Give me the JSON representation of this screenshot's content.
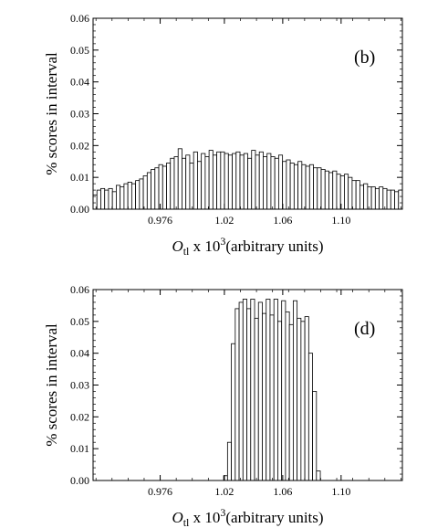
{
  "chart_data": [
    {
      "type": "bar",
      "panel_label": "(b)",
      "ylabel": "% scores in interval",
      "xlabel_prefix": "O",
      "xlabel_sub": "tl",
      "xlabel_mid": " x 10",
      "xlabel_sup": "3",
      "xlabel_suffix": "(arbitrary units)",
      "xlim": [
        0.93,
        1.142
      ],
      "ylim": [
        0,
        0.06
      ],
      "xticks": [
        "0.976",
        "1.02",
        "1.06",
        "1.10"
      ],
      "yticks": [
        "0.00",
        "0.01",
        "0.02",
        "0.03",
        "0.04",
        "0.05",
        "0.06"
      ],
      "bin_start": 0.93,
      "bin_width": 0.00265,
      "values": [
        0.0045,
        0.006,
        0.0065,
        0.006,
        0.0065,
        0.0055,
        0.0075,
        0.007,
        0.008,
        0.0085,
        0.008,
        0.009,
        0.0095,
        0.0105,
        0.0115,
        0.0125,
        0.013,
        0.014,
        0.0135,
        0.0145,
        0.016,
        0.0165,
        0.019,
        0.016,
        0.017,
        0.0145,
        0.018,
        0.015,
        0.0175,
        0.0165,
        0.0185,
        0.017,
        0.018,
        0.018,
        0.0175,
        0.017,
        0.0175,
        0.018,
        0.017,
        0.0175,
        0.016,
        0.0185,
        0.017,
        0.018,
        0.0165,
        0.0175,
        0.0165,
        0.016,
        0.017,
        0.015,
        0.0155,
        0.0145,
        0.014,
        0.015,
        0.014,
        0.0135,
        0.014,
        0.013,
        0.013,
        0.0125,
        0.012,
        0.0115,
        0.012,
        0.011,
        0.0105,
        0.011,
        0.01,
        0.009,
        0.009,
        0.0075,
        0.008,
        0.007,
        0.007,
        0.0065,
        0.007,
        0.0065,
        0.006,
        0.006,
        0.0055,
        0.006
      ]
    },
    {
      "type": "bar",
      "panel_label": "(d)",
      "ylabel": "% scores in interval",
      "xlabel_prefix": "O",
      "xlabel_sub": "tl",
      "xlabel_mid": " x 10",
      "xlabel_sup": "3",
      "xlabel_suffix": "(arbitrary units)",
      "xlim": [
        0.93,
        1.142
      ],
      "ylim": [
        0,
        0.06
      ],
      "xticks": [
        "0.976",
        "1.02",
        "1.06",
        "1.10"
      ],
      "yticks": [
        "0.00",
        "0.01",
        "0.02",
        "0.03",
        "0.04",
        "0.05",
        "0.06"
      ],
      "bin_start": 1.0195,
      "bin_width": 0.00265,
      "values": [
        0.0015,
        0.012,
        0.043,
        0.054,
        0.056,
        0.057,
        0.054,
        0.057,
        0.051,
        0.056,
        0.0525,
        0.057,
        0.052,
        0.057,
        0.05,
        0.0565,
        0.053,
        0.049,
        0.0565,
        0.051,
        0.05,
        0.0515,
        0.04,
        0.028,
        0.003
      ]
    }
  ]
}
